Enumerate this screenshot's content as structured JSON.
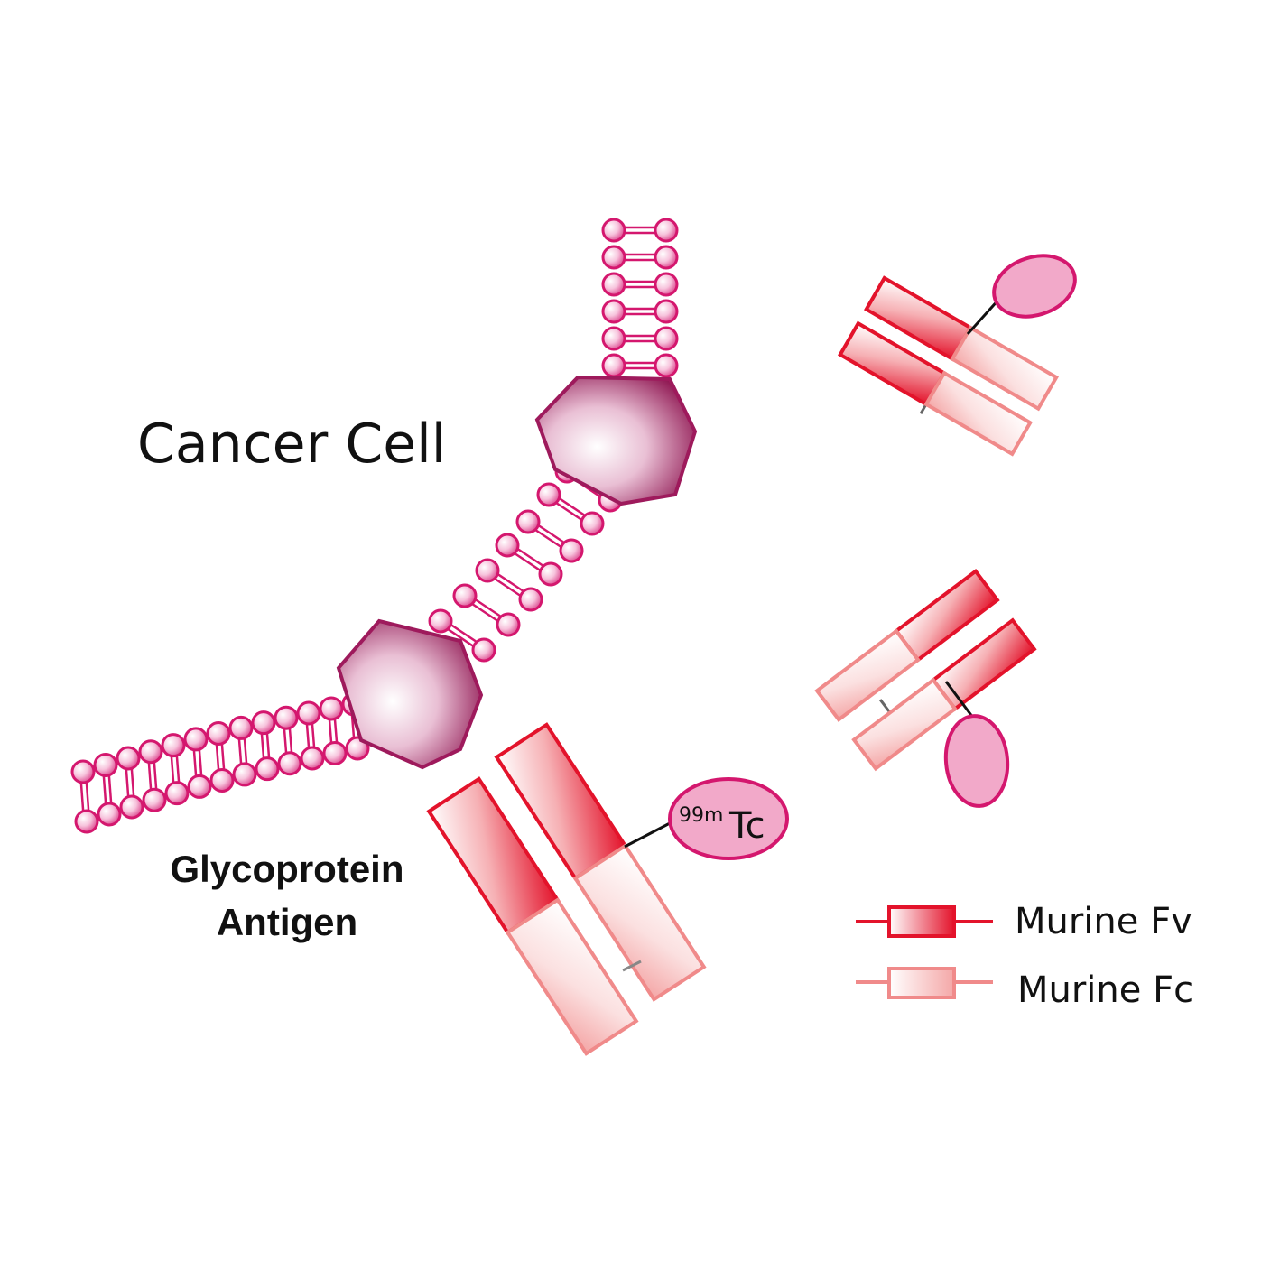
{
  "labels": {
    "cell": "Cancer Cell",
    "antigen_line1": "Glycoprotein",
    "antigen_line2": "Antigen",
    "isotope_mass": "99m",
    "isotope_symbol": "Tc"
  },
  "legend": {
    "fv_label": "Murine Fv",
    "fc_label": "Murine Fc"
  },
  "colors": {
    "membrane": "#d4176e",
    "membrane_bead_light": "#fbe3ef",
    "protein_dark": "#8e1450",
    "protein_light": "#ffffff",
    "fv_red": "#e3132b",
    "fc_pink": "#f08a8a",
    "tag_fill": "#f2a9c9",
    "tag_stroke": "#d4176e"
  },
  "icons": {
    "membrane": "lipid-bilayer-icon",
    "antigen": "glycoprotein-icon",
    "antibody": "antibody-fragment-icon",
    "tag": "radiolabel-ellipse-icon"
  }
}
